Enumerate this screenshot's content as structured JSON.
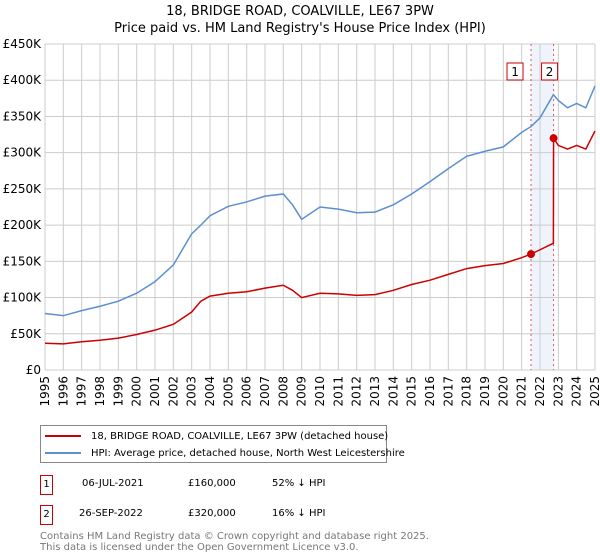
{
  "chart_data": {
    "type": "line",
    "title": "18, BRIDGE ROAD, COALVILLE, LE67 3PW",
    "subtitle": "Price paid vs. HM Land Registry's House Price Index (HPI)",
    "xlim": [
      1995,
      2025
    ],
    "ylim": [
      0,
      450000
    ],
    "x_ticks": [
      "1995",
      "1996",
      "1997",
      "1998",
      "1999",
      "2000",
      "2001",
      "2002",
      "2003",
      "2004",
      "2005",
      "2006",
      "2007",
      "2008",
      "2009",
      "2010",
      "2011",
      "2012",
      "2013",
      "2014",
      "2015",
      "2016",
      "2017",
      "2018",
      "2019",
      "2020",
      "2021",
      "2022",
      "2023",
      "2024",
      "2025"
    ],
    "y_ticks": [
      {
        "v": 0,
        "label": "£0"
      },
      {
        "v": 50000,
        "label": "£50K"
      },
      {
        "v": 100000,
        "label": "£100K"
      },
      {
        "v": 150000,
        "label": "£150K"
      },
      {
        "v": 200000,
        "label": "£200K"
      },
      {
        "v": 250000,
        "label": "£250K"
      },
      {
        "v": 300000,
        "label": "£300K"
      },
      {
        "v": 350000,
        "label": "£350K"
      },
      {
        "v": 400000,
        "label": "£400K"
      },
      {
        "v": 450000,
        "label": "£450K"
      }
    ],
    "grid": true,
    "series": [
      {
        "name": "18, BRIDGE ROAD, COALVILLE, LE67 3PW (detached house)",
        "color": "#cc0000",
        "x": [
          1995,
          1996,
          1997,
          1998,
          1999,
          2000,
          2001,
          2002,
          2003,
          2003.5,
          2004,
          2005,
          2006,
          2007,
          2008,
          2008.5,
          2009,
          2010,
          2011,
          2012,
          2013,
          2014,
          2015,
          2016,
          2017,
          2018,
          2019,
          2020,
          2021,
          2021.51,
          2022,
          2022.73,
          2022.74,
          2023,
          2023.5,
          2024,
          2024.5,
          2025
        ],
        "y": [
          37000,
          36000,
          39000,
          41000,
          44000,
          49000,
          55000,
          63000,
          80000,
          95000,
          102000,
          106000,
          108000,
          113000,
          117000,
          110000,
          100000,
          106000,
          105000,
          103000,
          104000,
          110000,
          118000,
          124000,
          132000,
          140000,
          144000,
          147000,
          155000,
          160000,
          166000,
          175000,
          320000,
          310000,
          305000,
          310000,
          305000,
          330000
        ]
      },
      {
        "name": "HPI: Average price, detached house, North West Leicestershire",
        "color": "#5b8fd0",
        "x": [
          1995,
          1996,
          1997,
          1998,
          1999,
          2000,
          2001,
          2002,
          2003,
          2003.5,
          2004,
          2005,
          2006,
          2007,
          2008,
          2008.5,
          2009,
          2010,
          2011,
          2012,
          2013,
          2014,
          2015,
          2016,
          2017,
          2018,
          2019,
          2020,
          2021,
          2021.51,
          2022,
          2022.73,
          2023,
          2023.5,
          2024,
          2024.5,
          2025
        ],
        "y": [
          78000,
          75000,
          82000,
          88000,
          95000,
          106000,
          122000,
          145000,
          188000,
          200000,
          213000,
          226000,
          232000,
          240000,
          243000,
          228000,
          208000,
          225000,
          222000,
          217000,
          218000,
          228000,
          243000,
          260000,
          278000,
          295000,
          302000,
          308000,
          328000,
          336000,
          348000,
          380000,
          372000,
          362000,
          368000,
          362000,
          392000
        ]
      }
    ],
    "sales": [
      {
        "label": "1",
        "x": 2021.51,
        "y": 160000
      },
      {
        "label": "2",
        "x": 2022.74,
        "y": 320000
      }
    ]
  },
  "legend": {
    "red": "18, BRIDGE ROAD, COALVILLE, LE67 3PW (detached house)",
    "blue": "HPI: Average price, detached house, North West Leicestershire"
  },
  "table": [
    {
      "n": "1",
      "date": "06-JUL-2021",
      "price": "£160,000",
      "hpi": "52% ↓ HPI"
    },
    {
      "n": "2",
      "date": "26-SEP-2022",
      "price": "£320,000",
      "hpi": "16% ↓ HPI"
    }
  ],
  "footer": [
    "Contains HM Land Registry data © Crown copyright and database right 2025.",
    "This data is licensed under the Open Government Licence v3.0."
  ]
}
